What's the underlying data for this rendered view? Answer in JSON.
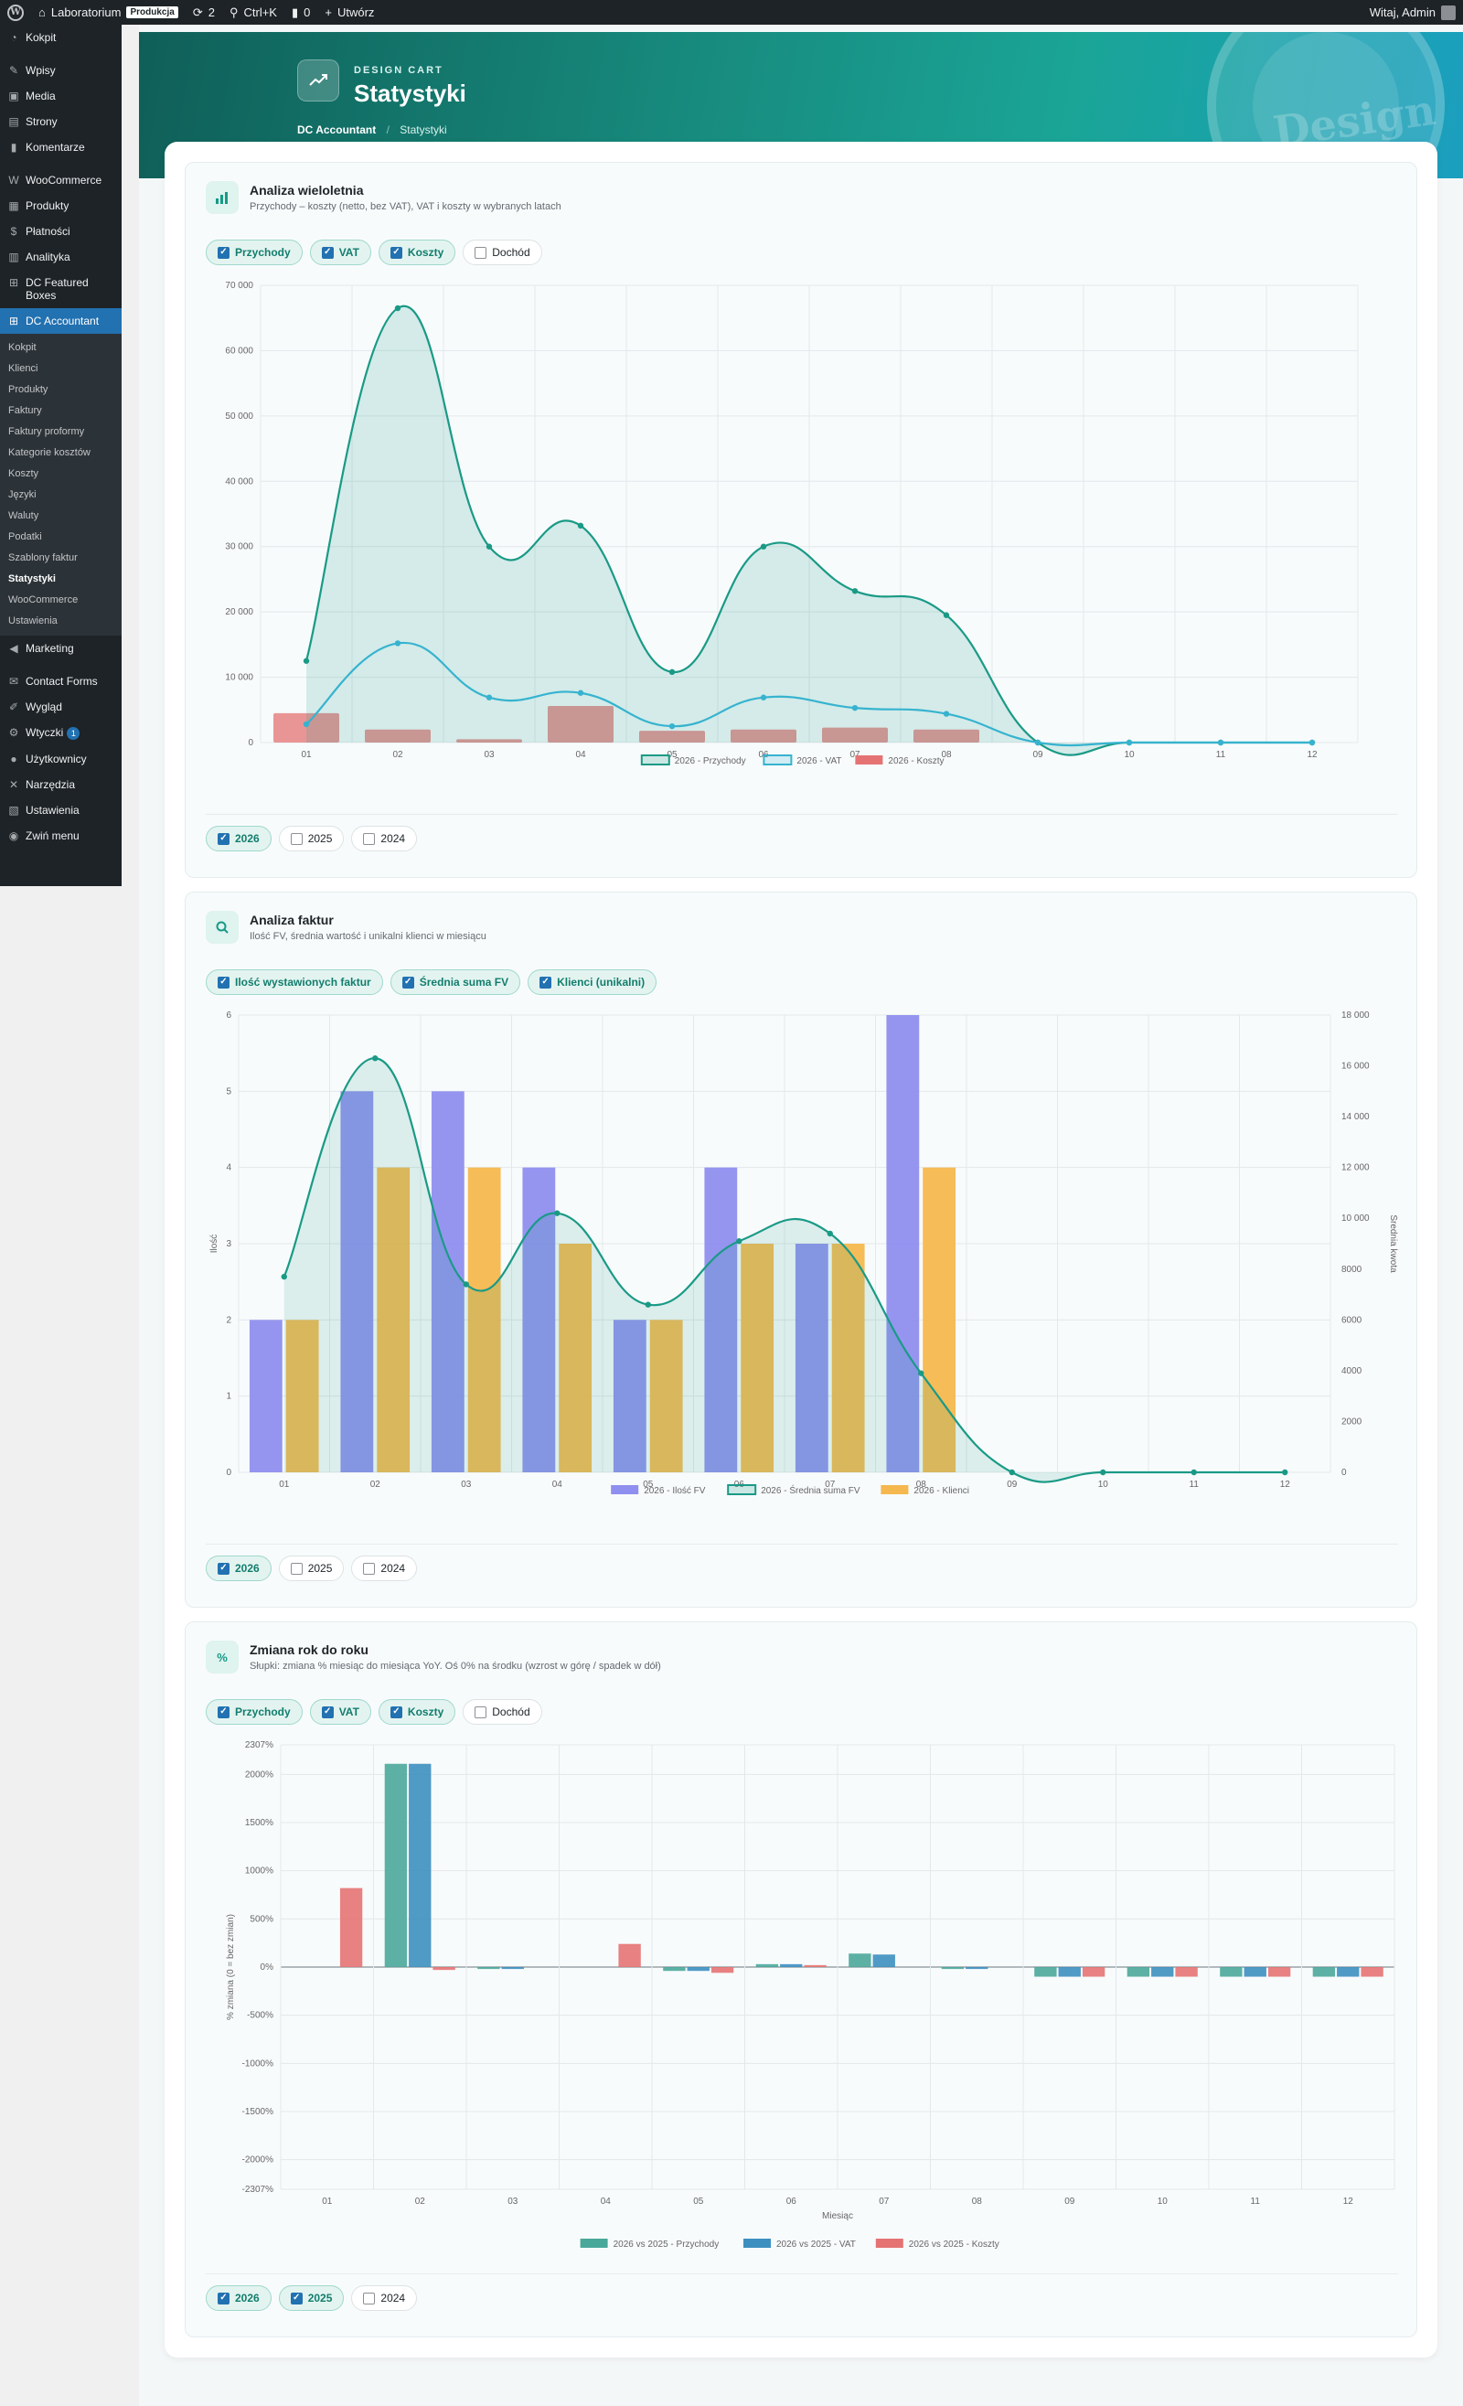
{
  "adminbar": {
    "site_name": "Laboratorium",
    "env_badge": "Produkcja",
    "updates_count": "2",
    "search_shortcut": "Ctrl+K",
    "comments_count": "0",
    "new_label": "Utwórz",
    "greeting": "Witaj, Admin"
  },
  "sidebar": {
    "items": [
      {
        "label": "Kokpit",
        "icon": "dashboard-icon"
      },
      {
        "label": "Wpisy",
        "icon": "pin-icon"
      },
      {
        "label": "Media",
        "icon": "media-icon"
      },
      {
        "label": "Strony",
        "icon": "page-icon"
      },
      {
        "label": "Komentarze",
        "icon": "comment-icon"
      },
      {
        "label": "WooCommerce",
        "icon": "woo-icon"
      },
      {
        "label": "Produkty",
        "icon": "archive-icon"
      },
      {
        "label": "Płatności",
        "icon": "money-icon"
      },
      {
        "label": "Analityka",
        "icon": "chart-bar-icon"
      },
      {
        "label": "DC Featured Boxes",
        "icon": "grid-icon"
      },
      {
        "label": "DC Accountant",
        "icon": "grid-icon"
      }
    ],
    "submenu": [
      "Kokpit",
      "Klienci",
      "Produkty",
      "Faktury",
      "Faktury proformy",
      "Kategorie kosztów",
      "Koszty",
      "Języki",
      "Waluty",
      "Podatki",
      "Szablony faktur",
      "Statystyki",
      "WooCommerce",
      "Ustawienia"
    ],
    "submenu_current": "Statystyki",
    "items_after": [
      {
        "label": "Marketing",
        "icon": "megaphone-icon"
      },
      {
        "label": "Contact Forms",
        "icon": "mail-icon"
      },
      {
        "label": "Wygląd",
        "icon": "brush-icon"
      },
      {
        "label": "Wtyczki",
        "icon": "plugin-icon",
        "badge": "1"
      },
      {
        "label": "Użytkownicy",
        "icon": "user-icon"
      },
      {
        "label": "Narzędzia",
        "icon": "wrench-icon"
      },
      {
        "label": "Ustawienia",
        "icon": "settings-icon"
      },
      {
        "label": "Zwiń menu",
        "icon": "collapse-icon"
      }
    ]
  },
  "hero": {
    "kicker": "DESIGN CART",
    "title": "Statystyki",
    "breadcrumb_root": "DC Accountant",
    "breadcrumb_current": "Statystyki",
    "watermark": "Design"
  },
  "panels": {
    "multiyear": {
      "title": "Analiza wieloletnia",
      "subtitle": "Przychody – koszty (netto, bez VAT), VAT i koszty w wybranych latach",
      "filters": [
        {
          "label": "Przychody",
          "checked": true
        },
        {
          "label": "VAT",
          "checked": true
        },
        {
          "label": "Koszty",
          "checked": true
        },
        {
          "label": "Dochód",
          "checked": false
        }
      ],
      "years": [
        {
          "label": "2026",
          "checked": true
        },
        {
          "label": "2025",
          "checked": false
        },
        {
          "label": "2024",
          "checked": false
        }
      ]
    },
    "invoices": {
      "title": "Analiza faktur",
      "subtitle": "Ilość FV, średnia wartość i unikalni klienci w miesiącu",
      "filters": [
        {
          "label": "Ilość wystawionych faktur",
          "checked": true
        },
        {
          "label": "Średnia suma FV",
          "checked": true
        },
        {
          "label": "Klienci (unikalni)",
          "checked": true
        }
      ],
      "years": [
        {
          "label": "2026",
          "checked": true
        },
        {
          "label": "2025",
          "checked": false
        },
        {
          "label": "2024",
          "checked": false
        }
      ]
    },
    "yoy": {
      "title": "Zmiana rok do roku",
      "subtitle": "Słupki: zmiana % miesiąc do miesiąca YoY. Oś 0% na środku (wzrost w górę / spadek w dół)",
      "filters": [
        {
          "label": "Przychody",
          "checked": true
        },
        {
          "label": "VAT",
          "checked": true
        },
        {
          "label": "Koszty",
          "checked": true
        },
        {
          "label": "Dochód",
          "checked": false
        }
      ],
      "years": [
        {
          "label": "2026",
          "checked": true
        },
        {
          "label": "2025",
          "checked": true
        },
        {
          "label": "2024",
          "checked": false
        }
      ]
    }
  },
  "colors": {
    "teal": "#1a9a86",
    "cyan": "#36b3cf",
    "red": "#e57373",
    "purple": "#8f8fef",
    "orange": "#f5b84e",
    "blue": "#3d8fc0"
  },
  "chart_data": [
    {
      "type": "line",
      "x": [
        "01",
        "02",
        "03",
        "04",
        "05",
        "06",
        "07",
        "08",
        "09",
        "10",
        "11",
        "12"
      ],
      "yticks": [
        "0",
        "10 000",
        "20 000",
        "30 000",
        "40 000",
        "50 000",
        "60 000",
        "70 000"
      ],
      "ylim": [
        0,
        70000
      ],
      "series": [
        {
          "name": "2026 - Przychody",
          "kind": "area",
          "color": "#1a9a86",
          "values": [
            12500,
            66500,
            30000,
            33200,
            10800,
            30000,
            23200,
            19500,
            0,
            0,
            0,
            0
          ]
        },
        {
          "name": "2026 - VAT",
          "kind": "line",
          "color": "#36b3cf",
          "values": [
            2800,
            15200,
            6900,
            7600,
            2500,
            6900,
            5300,
            4400,
            0,
            0,
            0,
            0
          ]
        },
        {
          "name": "2026 - Koszty",
          "kind": "bar",
          "color": "#e57373",
          "values": [
            4500,
            2000,
            500,
            5600,
            1800,
            2000,
            2300,
            2000,
            0,
            0,
            0,
            0
          ]
        }
      ],
      "grid": true,
      "legend": "bottom"
    },
    {
      "type": "bar",
      "x": [
        "01",
        "02",
        "03",
        "04",
        "05",
        "06",
        "07",
        "08",
        "09",
        "10",
        "11",
        "12"
      ],
      "ylabel": "Ilość",
      "y2label": "Średnia kwota",
      "yticks": [
        "0",
        "1",
        "2",
        "3",
        "4",
        "5",
        "6"
      ],
      "y2ticks": [
        "0",
        "2000",
        "4000",
        "6000",
        "8000",
        "10 000",
        "12 000",
        "14 000",
        "16 000",
        "18 000"
      ],
      "ylim": [
        0,
        6
      ],
      "y2lim": [
        0,
        18000
      ],
      "series": [
        {
          "name": "2026 - Ilość FV",
          "kind": "bar",
          "axis": "left",
          "color": "#8f8fef",
          "values": [
            2,
            5,
            5,
            4,
            2,
            4,
            3,
            6,
            0,
            0,
            0,
            0
          ]
        },
        {
          "name": "2026 - Średnia suma FV",
          "kind": "area",
          "axis": "right",
          "color": "#1a9a86",
          "values": [
            7700,
            16300,
            7400,
            10200,
            6600,
            9100,
            9400,
            3900,
            0,
            0,
            0,
            0
          ]
        },
        {
          "name": "2026 - Klienci",
          "kind": "bar",
          "axis": "left",
          "color": "#f5b84e",
          "values": [
            2,
            4,
            4,
            3,
            2,
            3,
            3,
            4,
            0,
            0,
            0,
            0
          ]
        }
      ],
      "grid": true,
      "legend": "bottom"
    },
    {
      "type": "bar",
      "x": [
        "01",
        "02",
        "03",
        "04",
        "05",
        "06",
        "07",
        "08",
        "09",
        "10",
        "11",
        "12"
      ],
      "xlabel": "Miesiąc",
      "ylabel": "% zmiana (0 = bez zmian)",
      "yticks": [
        "-2307%",
        "-2000%",
        "-1500%",
        "-1000%",
        "-500%",
        "0%",
        "500%",
        "1000%",
        "1500%",
        "2000%",
        "2307%"
      ],
      "ylim": [
        -2307,
        2307
      ],
      "series": [
        {
          "name": "2026 vs 2025 - Przychody",
          "color": "#4aa89a",
          "values": [
            0,
            2110,
            -20,
            0,
            -40,
            30,
            140,
            -20,
            -100,
            -100,
            -100,
            -100
          ]
        },
        {
          "name": "2026 vs 2025 - VAT",
          "color": "#3d8fc0",
          "values": [
            0,
            2110,
            -20,
            0,
            -40,
            30,
            130,
            -20,
            -100,
            -100,
            -100,
            -100
          ]
        },
        {
          "name": "2026 vs 2025 - Koszty",
          "color": "#e57373",
          "values": [
            820,
            -30,
            0,
            240,
            -60,
            20,
            0,
            0,
            -100,
            -100,
            -100,
            -100
          ]
        }
      ],
      "grid": true,
      "legend": "bottom"
    }
  ]
}
